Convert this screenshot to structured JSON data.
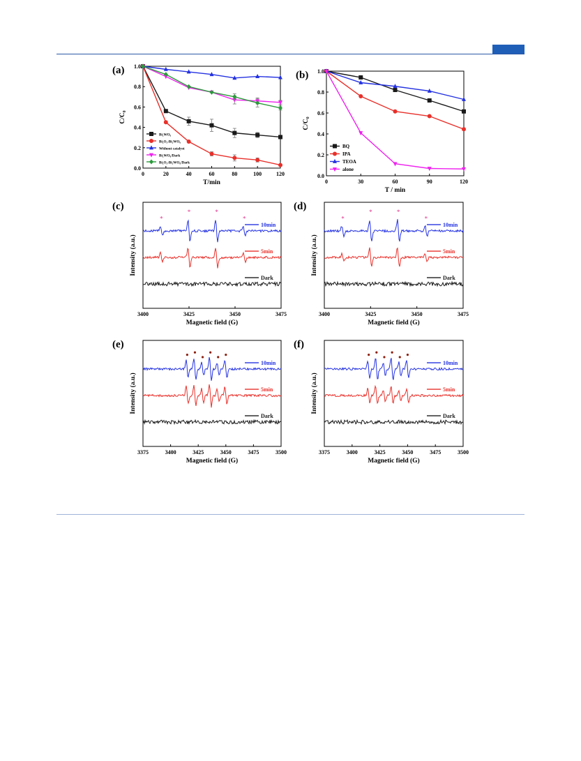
{
  "colors": {
    "header_rule": "#2b57a6",
    "accent": "#1f5fb8",
    "footer_rule": "#9eb4d8",
    "black": "#1a1a1a",
    "red": "#e8302a",
    "blue": "#2432e0",
    "magenta": "#ee22ee",
    "green": "#2a9a3a",
    "star": "#e0308a"
  },
  "chart_data": [
    {
      "panel": "(a)",
      "type": "line",
      "xlabel": "T/min",
      "ylabel": "C/C₀",
      "xlim": [
        0,
        120
      ],
      "ylim": [
        0,
        1.0
      ],
      "xticks": [
        0,
        20,
        40,
        60,
        80,
        100,
        120
      ],
      "yticks": [
        0.0,
        0.2,
        0.4,
        0.6,
        0.8,
        1.0
      ],
      "legend_position": "bottom-left",
      "x": [
        0,
        20,
        40,
        60,
        80,
        100,
        120
      ],
      "series": [
        {
          "name": "Bi₂WO₆",
          "color": "black",
          "marker": "square",
          "values": [
            1.0,
            0.56,
            0.46,
            0.42,
            0.345,
            0.325,
            0.305
          ],
          "errors": [
            0,
            0,
            0.04,
            0.06,
            0.045,
            0.025,
            0
          ]
        },
        {
          "name": "Bi₂O₃-Bi₂WO₆",
          "color": "red",
          "marker": "circle",
          "values": [
            1.0,
            0.45,
            0.26,
            0.14,
            0.1,
            0.08,
            0.03
          ],
          "errors": [
            0,
            0,
            0,
            0.02,
            0.03,
            0.02,
            0
          ]
        },
        {
          "name": "Without catalyst",
          "color": "blue",
          "marker": "triangle",
          "values": [
            1.0,
            0.97,
            0.945,
            0.92,
            0.885,
            0.9,
            0.89
          ],
          "errors": [
            0,
            0,
            0,
            0,
            0,
            0,
            0
          ]
        },
        {
          "name": "Bi₂WO₆/Dark",
          "color": "magenta",
          "marker": "tri-down",
          "values": [
            1.0,
            0.9,
            0.79,
            0.745,
            0.67,
            0.66,
            0.645
          ],
          "errors": [
            0,
            0,
            0,
            0,
            0.04,
            0.03,
            0.02
          ]
        },
        {
          "name": "Bi₂O₃-Bi₂WO₆/Dark",
          "color": "green",
          "marker": "diamond",
          "values": [
            1.0,
            0.92,
            0.8,
            0.745,
            0.7,
            0.64,
            0.59
          ],
          "errors": [
            0,
            0,
            0,
            0,
            0.03,
            0.04,
            0.02
          ]
        }
      ]
    },
    {
      "panel": "(b)",
      "type": "line",
      "xlabel": "T / min",
      "ylabel": "C/C₀",
      "xlim": [
        0,
        120
      ],
      "ylim": [
        0,
        1.0
      ],
      "xticks": [
        0,
        30,
        60,
        90,
        120
      ],
      "yticks": [
        0.0,
        0.2,
        0.4,
        0.6,
        0.8,
        1.0
      ],
      "legend_position": "bottom-left",
      "x": [
        0,
        30,
        60,
        90,
        120
      ],
      "series": [
        {
          "name": "BQ",
          "color": "black",
          "marker": "square",
          "values": [
            1.0,
            0.94,
            0.82,
            0.72,
            0.615
          ]
        },
        {
          "name": "IPA",
          "color": "red",
          "marker": "circle",
          "values": [
            1.0,
            0.76,
            0.615,
            0.57,
            0.445
          ]
        },
        {
          "name": "TEOA",
          "color": "blue",
          "marker": "triangle",
          "values": [
            1.0,
            0.89,
            0.855,
            0.81,
            0.73
          ]
        },
        {
          "name": "alone",
          "color": "magenta",
          "marker": "tri-down",
          "values": [
            1.0,
            0.41,
            0.115,
            0.07,
            0.065
          ]
        }
      ]
    },
    {
      "panel": "(c)",
      "type": "line",
      "xlabel": "Magnetic field (G)",
      "ylabel": "Intensity (a.u.)",
      "xlim": [
        3400,
        3475
      ],
      "xticks": [
        3400,
        3425,
        3450,
        3475
      ],
      "peaks": [
        3410,
        3425,
        3440,
        3455
      ],
      "peak_amp": [
        0.45,
        1.0,
        1.0,
        0.45
      ],
      "marker": "star",
      "series": [
        {
          "name": "10min",
          "color": "blue",
          "scale": 1.0
        },
        {
          "name": "5min",
          "color": "red",
          "scale": 0.9
        },
        {
          "name": "Dark",
          "color": "black",
          "scale": 0
        }
      ]
    },
    {
      "panel": "(d)",
      "type": "line",
      "xlabel": "Magnetic field (G)",
      "ylabel": "Intensity (a.u.)",
      "xlim": [
        3400,
        3475
      ],
      "xticks": [
        3400,
        3425,
        3450,
        3475
      ],
      "peaks": [
        3410,
        3425,
        3440,
        3455
      ],
      "peak_amp": [
        0.45,
        1.0,
        1.0,
        0.45
      ],
      "marker": "star",
      "series": [
        {
          "name": "10min",
          "color": "blue",
          "scale": 1.0
        },
        {
          "name": "5min",
          "color": "red",
          "scale": 0.85
        },
        {
          "name": "Dark",
          "color": "black",
          "scale": 0
        }
      ]
    },
    {
      "panel": "(e)",
      "type": "line",
      "xlabel": "Magnetic field (G)",
      "ylabel": "Intensity (a.u.)",
      "xlim": [
        3375,
        3500
      ],
      "xticks": [
        3375,
        3400,
        3425,
        3450,
        3475,
        3500
      ],
      "peaks": [
        3415,
        3422,
        3429,
        3436,
        3443,
        3450
      ],
      "peak_amp": [
        0.8,
        1.0,
        0.6,
        1.0,
        0.6,
        0.8
      ],
      "marker": "dot",
      "series": [
        {
          "name": "10min",
          "color": "blue",
          "scale": 1.0
        },
        {
          "name": "5min",
          "color": "red",
          "scale": 1.0
        },
        {
          "name": "Dark",
          "color": "black",
          "scale": 0
        }
      ]
    },
    {
      "panel": "(f)",
      "type": "line",
      "xlabel": "Magnetic field (G)",
      "ylabel": "Intensity (a.u.)",
      "xlim": [
        3375,
        3500
      ],
      "xticks": [
        3375,
        3400,
        3425,
        3450,
        3475,
        3500
      ],
      "peaks": [
        3415,
        3422,
        3429,
        3436,
        3443,
        3450
      ],
      "peak_amp": [
        0.8,
        1.0,
        0.6,
        1.0,
        0.6,
        0.8
      ],
      "marker": "dot",
      "series": [
        {
          "name": "10min",
          "color": "blue",
          "scale": 1.0
        },
        {
          "name": "5min",
          "color": "red",
          "scale": 0.8
        },
        {
          "name": "Dark",
          "color": "black",
          "scale": 0
        }
      ]
    }
  ]
}
